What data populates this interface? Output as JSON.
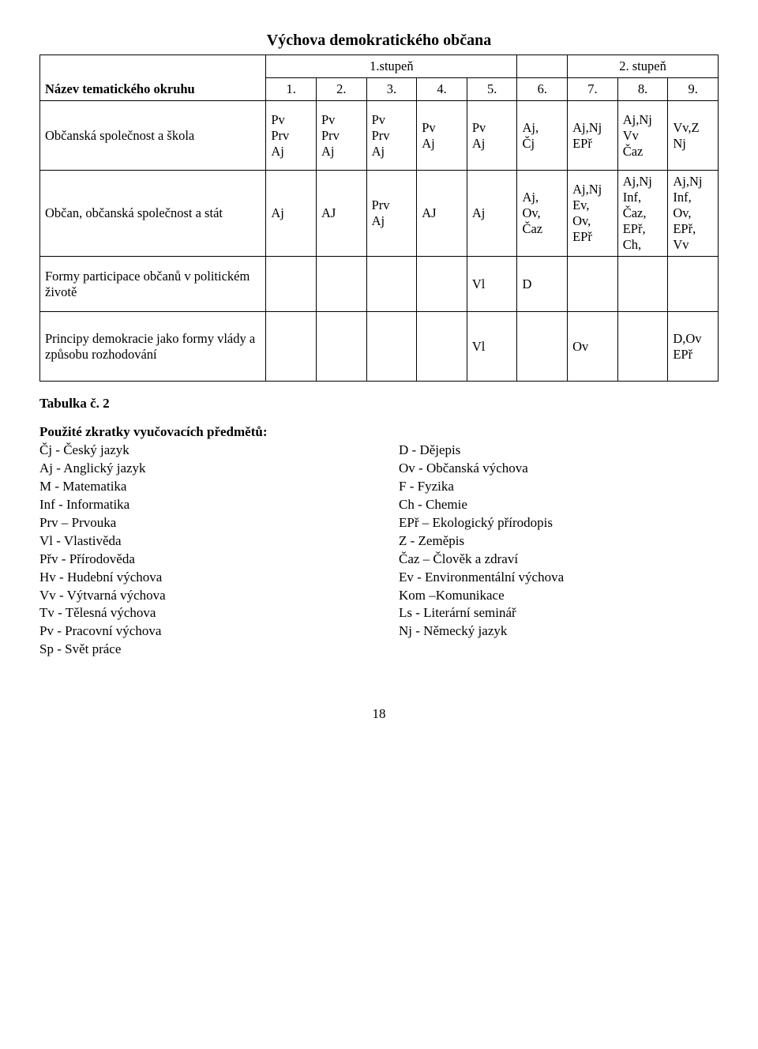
{
  "title": "Výchova demokratického občana",
  "header": {
    "rowLabel": "Název tematického okruhu",
    "stage1": "1.stupeň",
    "stage2": "2. stupeň",
    "cols": [
      "1.",
      "2.",
      "3.",
      "4.",
      "5.",
      "6.",
      "7.",
      "8.",
      "9."
    ]
  },
  "rows": [
    {
      "label": "Občanská společnost a škola",
      "cells": [
        "Pv\nPrv\nAj",
        "Pv\nPrv\nAj",
        "Pv\nPrv\nAj",
        "Pv\nAj",
        "Pv\nAj",
        "Aj,\nČj",
        "Aj,Nj\nEPř",
        "Aj,Nj\nVv\nČaz",
        "Vv,Z\nNj"
      ]
    },
    {
      "label": "Občan, občanská společnost a stát",
      "cells": [
        "Aj",
        "AJ",
        "Prv\nAj",
        "AJ",
        "Aj",
        "Aj,\nOv,\nČaz",
        "Aj,Nj\nEv,\nOv,\nEPř",
        "Aj,Nj\nInf,\nČaz,\nEPř,\nCh,",
        "Aj,Nj\nInf,\nOv,\nEPř,\nVv"
      ]
    },
    {
      "label": "Formy participace občanů v politickém životě",
      "cells": [
        "",
        "",
        "",
        "",
        "Vl",
        "D",
        "",
        "",
        ""
      ]
    },
    {
      "label": "Principy demokracie jako formy vlády a způsobu rozhodování",
      "cells": [
        "",
        "",
        "",
        "",
        "Vl",
        "",
        "Ov",
        "",
        "D,Ov\nEPř"
      ]
    }
  ],
  "caption": "Tabulka č. 2",
  "legendTitle": "Použité zkratky vyučovacích předmětů:",
  "legendLeft": [
    "Čj   -  Český jazyk",
    "Aj   -  Anglický jazyk",
    "M   -  Matematika",
    "Inf  -  Informatika",
    "Prv – Prvouka",
    "Vl   -  Vlastivěda",
    "Přv  -  Přírodověda",
    "Hv  -  Hudební výchova",
    "Vv  -  Výtvarná výchova",
    "Tv  -  Tělesná výchova",
    "Pv  -  Pracovní výchova",
    "Sp   -  Svět práce"
  ],
  "legendRight": [
    "D    -  Dějepis",
    "Ov   - Občanská výchova",
    "F    -  Fyzika",
    "Ch  -  Chemie",
    "EPř – Ekologický přírodopis",
    "Z    -   Zeměpis",
    "Čaz – Člověk a zdraví",
    "Ev   - Environmentální výchova",
    "Kom –Komunikace",
    "Ls   -  Literární seminář",
    "Nj   -  Německý jazyk"
  ],
  "pageNumber": "18"
}
